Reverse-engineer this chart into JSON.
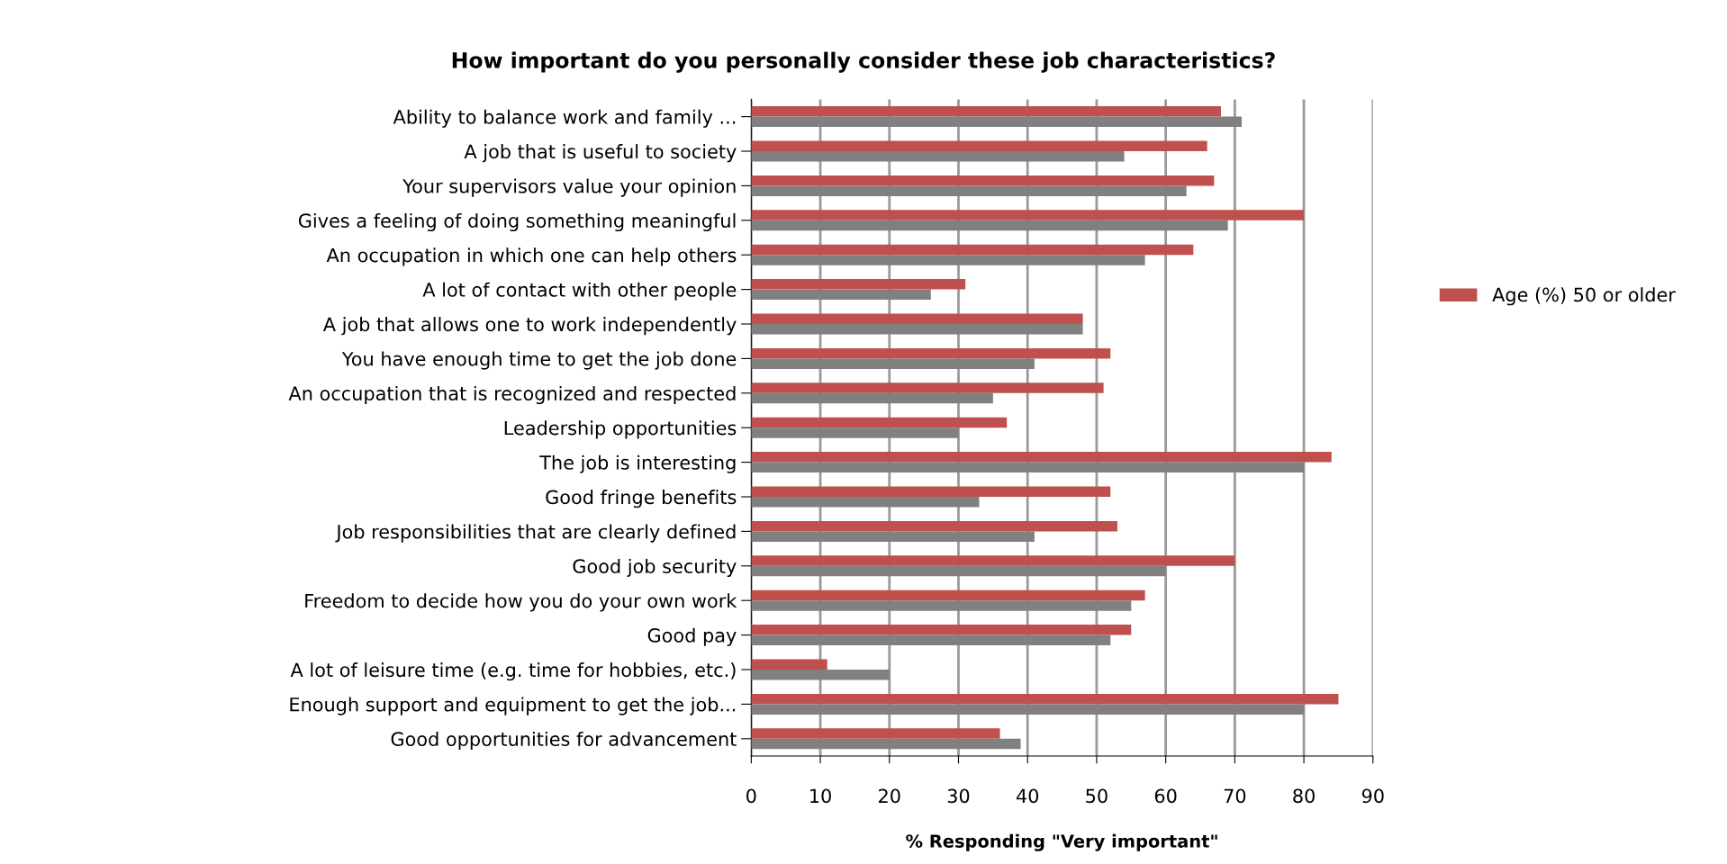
{
  "chart_data": {
    "type": "bar",
    "orientation": "horizontal",
    "title": "How important do you personally consider these job characteristics?",
    "xlabel": "% Responding \"Very important\"",
    "categories": [
      "Ability to balance work and family ...",
      "A job that is useful to society",
      "Your supervisors value your opinion",
      "Gives a feeling of doing something meaningful",
      "An occupation in which one can help others",
      "A lot of contact with other people",
      "A job that allows one to work independently",
      "You have enough time to get the job done",
      "An occupation that is recognized and respected",
      "Leadership opportunities",
      "The job is interesting",
      "Good fringe benefits",
      "Job responsibilities that are clearly defined",
      "Good job security",
      "Freedom to decide how you do your own work",
      "Good pay",
      "A lot of leisure time (e.g. time for hobbies, etc.)",
      "Enough support and equipment to get the job...",
      "Good opportunities for advancement"
    ],
    "series": [
      {
        "name": "Age (%) 50 or older",
        "color": "#c0504d",
        "values": [
          68,
          66,
          67,
          80,
          64,
          31,
          48,
          52,
          51,
          37,
          84,
          52,
          53,
          70,
          57,
          55,
          11,
          85,
          36
        ]
      },
      {
        "color": "#808080",
        "values": [
          71,
          54,
          63,
          69,
          57,
          26,
          48,
          41,
          35,
          30,
          80,
          33,
          41,
          60,
          55,
          52,
          20,
          80,
          39
        ]
      }
    ],
    "xlim": [
      0,
      90
    ],
    "xticks": [
      0,
      10,
      20,
      30,
      40,
      50,
      60,
      70,
      80,
      90
    ],
    "grid": "x",
    "legend": "right"
  }
}
